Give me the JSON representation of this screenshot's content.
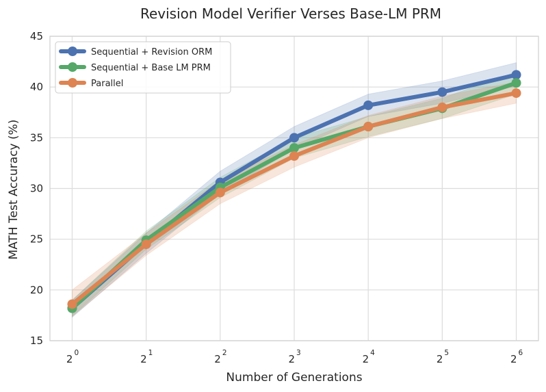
{
  "chart_data": {
    "type": "line",
    "title": "Revision Model Verifier Verses Base-LM PRM",
    "xlabel": "Number of Generations",
    "ylabel": "MATH Test Accuracy (%)",
    "x_ticks": [
      {
        "base": "2",
        "exp": "0"
      },
      {
        "base": "2",
        "exp": "1"
      },
      {
        "base": "2",
        "exp": "2"
      },
      {
        "base": "2",
        "exp": "3"
      },
      {
        "base": "2",
        "exp": "4"
      },
      {
        "base": "2",
        "exp": "5"
      },
      {
        "base": "2",
        "exp": "6"
      }
    ],
    "x": [
      1,
      2,
      4,
      8,
      16,
      32,
      64
    ],
    "x_scale": "log2",
    "ylim": [
      15,
      45
    ],
    "y_ticks": [
      "15",
      "20",
      "25",
      "30",
      "35",
      "40",
      "45"
    ],
    "grid": true,
    "legend_position": "top-left",
    "series": [
      {
        "name": "Sequential + Revision ORM",
        "color": "#4c72b0",
        "values": [
          18.2,
          24.6,
          30.6,
          35.0,
          38.2,
          39.5,
          41.2
        ],
        "lower": [
          17.3,
          23.6,
          29.5,
          33.9,
          37.1,
          38.4,
          40.1
        ],
        "upper": [
          19.0,
          25.6,
          31.7,
          36.1,
          39.3,
          40.6,
          42.4
        ]
      },
      {
        "name": "Sequential + Base LM PRM",
        "color": "#55a868",
        "values": [
          18.2,
          24.9,
          30.1,
          34.0,
          36.1,
          37.9,
          40.4
        ],
        "lower": [
          17.4,
          24.0,
          29.1,
          33.0,
          35.1,
          36.9,
          39.3
        ],
        "upper": [
          19.0,
          25.8,
          31.1,
          35.0,
          37.1,
          38.9,
          41.5
        ]
      },
      {
        "name": "Parallel",
        "color": "#dd8452",
        "values": [
          18.6,
          24.5,
          29.6,
          33.2,
          36.1,
          38.0,
          39.4
        ],
        "lower": [
          17.4,
          23.4,
          28.5,
          32.1,
          35.0,
          36.9,
          38.4
        ],
        "upper": [
          20.0,
          25.6,
          30.8,
          34.3,
          37.2,
          39.1,
          40.5
        ]
      }
    ]
  }
}
